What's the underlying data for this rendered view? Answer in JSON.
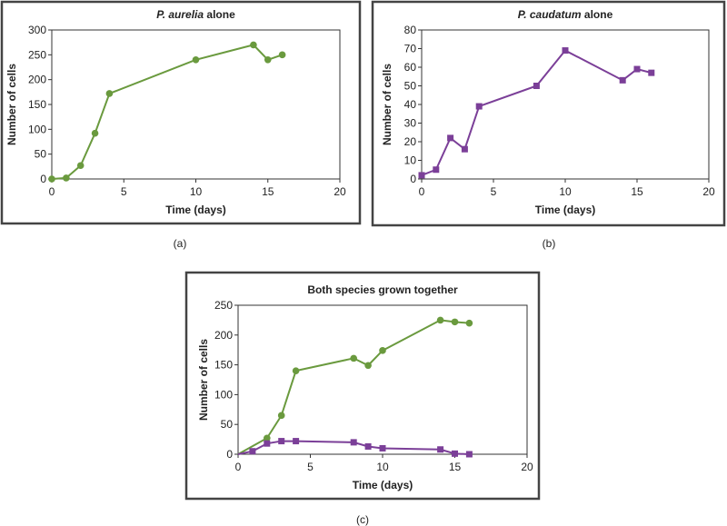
{
  "chart_data": [
    {
      "type": "line",
      "title_italic": "P. aurelia",
      "title_rest": " alone",
      "xlabel": "Time (days)",
      "ylabel": "Number of cells",
      "xlim": [
        0,
        20
      ],
      "ylim": [
        0,
        300
      ],
      "xticks": [
        0,
        5,
        10,
        15,
        20
      ],
      "yticks": [
        0,
        50,
        100,
        150,
        200,
        250,
        300
      ],
      "caption": "(a)",
      "grid": false,
      "series": [
        {
          "color": "#6a9a3e",
          "marker": "circle",
          "x": [
            0,
            1,
            2,
            3,
            4,
            10,
            14,
            15,
            16
          ],
          "y": [
            0,
            2,
            27,
            92,
            172,
            240,
            270,
            240,
            250
          ]
        }
      ]
    },
    {
      "type": "line",
      "title_italic": "P. caudatum",
      "title_rest": " alone",
      "xlabel": "Time (days)",
      "ylabel": "Number of cells",
      "xlim": [
        0,
        20
      ],
      "ylim": [
        0,
        80
      ],
      "xticks": [
        0,
        5,
        10,
        15,
        20
      ],
      "yticks": [
        0,
        10,
        20,
        30,
        40,
        50,
        60,
        70,
        80
      ],
      "caption": "(b)",
      "grid": false,
      "series": [
        {
          "color": "#7b3f98",
          "marker": "square",
          "x": [
            0,
            1,
            2,
            3,
            4,
            8,
            10,
            14,
            15,
            16
          ],
          "y": [
            2,
            5,
            22,
            16,
            39,
            50,
            69,
            53,
            59,
            57
          ]
        }
      ]
    },
    {
      "type": "line",
      "title_italic": "",
      "title_rest": "Both species grown together",
      "xlabel": "Time (days)",
      "ylabel": "Number of cells",
      "xlim": [
        0,
        20
      ],
      "ylim": [
        0,
        250
      ],
      "xticks": [
        0,
        5,
        10,
        15,
        20
      ],
      "yticks": [
        0,
        50,
        100,
        150,
        200,
        250
      ],
      "caption": "(c)",
      "grid": false,
      "series": [
        {
          "color": "#6a9a3e",
          "marker": "circle",
          "marker_from_index": 1,
          "x": [
            0,
            2,
            3,
            4,
            8,
            9,
            10,
            14,
            15,
            16
          ],
          "y": [
            0,
            27,
            65,
            140,
            161,
            149,
            174,
            225,
            222,
            220
          ]
        },
        {
          "color": "#7b3f98",
          "marker": "square",
          "marker_from_index": 1,
          "x": [
            0,
            1,
            2,
            3,
            4,
            8,
            9,
            10,
            14,
            15,
            16
          ],
          "y": [
            0,
            5,
            18,
            22,
            22,
            20,
            13,
            10,
            8,
            1,
            0
          ]
        }
      ]
    }
  ]
}
